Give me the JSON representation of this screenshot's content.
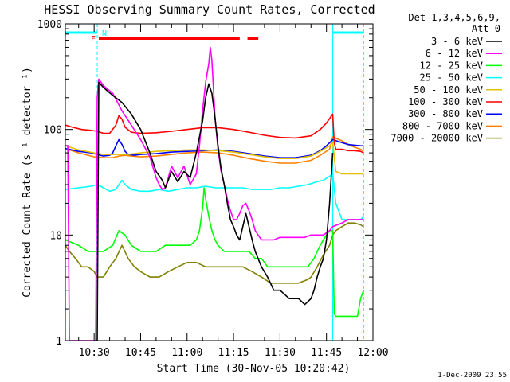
{
  "chart_data": {
    "type": "line",
    "title": "HESSI Observing Summary Count Rates, Corrected",
    "xlabel": "Start Time (30-Nov-05 10:20:42)",
    "ylabel": "Corrected Count Rate (s⁻¹ detector⁻¹)",
    "yscale": "log",
    "ylim": [
      1,
      1000
    ],
    "xlim_minutes": [
      20.7,
      120
    ],
    "x_ticks": [
      {
        "minute": 30,
        "label": "10:30"
      },
      {
        "minute": 45,
        "label": "10:45"
      },
      {
        "minute": 60,
        "label": "11:00"
      },
      {
        "minute": 75,
        "label": "11:15"
      },
      {
        "minute": 90,
        "label": "11:30"
      },
      {
        "minute": 105,
        "label": "11:45"
      },
      {
        "minute": 120,
        "label": "12:00"
      }
    ],
    "y_ticks": [
      {
        "value": 1,
        "label": "1"
      },
      {
        "value": 10,
        "label": "10"
      },
      {
        "value": 100,
        "label": "100"
      },
      {
        "value": 1000,
        "label": "1000"
      }
    ],
    "legend_header": [
      "Det 1,3,4,5,6,9,",
      "Att 0"
    ],
    "legend_position": "right",
    "timestamp": "1-Dec-2009 23:55",
    "annotations": {
      "night_marker": "N",
      "flare_marker": "F",
      "night_color": "#00ffff",
      "flare_color": "#ff0000",
      "night_intervals": [
        [
          20.7,
          31
        ],
        [
          107,
          117
        ]
      ],
      "night_boundaries": [
        31,
        107,
        117
      ],
      "flare_intervals": [
        [
          31.5,
          77
        ],
        [
          79.5,
          83
        ]
      ]
    },
    "series": [
      {
        "name": "3 - 6 keV",
        "color": "#000000",
        "x": [
          31,
          31.5,
          33,
          36,
          39,
          42,
          45,
          48,
          50,
          52,
          53,
          55,
          57,
          59,
          61,
          63,
          65,
          66,
          67,
          68,
          69,
          70,
          71,
          72,
          73,
          74,
          75,
          76,
          77,
          78,
          79,
          80,
          81,
          82,
          84,
          86,
          88,
          90,
          93,
          96,
          98,
          100,
          101,
          102,
          103,
          104,
          105,
          106,
          107
        ],
        "y": [
          1,
          280,
          250,
          210,
          180,
          140,
          100,
          60,
          40,
          33,
          28,
          40,
          32,
          40,
          35,
          60,
          120,
          200,
          270,
          220,
          130,
          70,
          42,
          30,
          20,
          14,
          12,
          10,
          9,
          12,
          16,
          12,
          9,
          7,
          5,
          4,
          3,
          3,
          2.5,
          2.5,
          2.2,
          2.5,
          3,
          4,
          5,
          6,
          9,
          20,
          60
        ]
      },
      {
        "name": "6 - 12 keV",
        "color": "#ff00ff",
        "x": [
          20.7,
          21.5,
          22,
          30.5,
          31,
          31.5,
          33,
          36,
          39,
          42,
          45,
          48,
          50,
          51,
          52,
          53,
          55,
          57,
          59,
          61,
          63,
          64,
          65,
          66,
          67,
          67.5,
          68,
          68.5,
          69,
          70,
          71,
          72,
          73,
          74,
          75,
          76,
          77,
          78,
          79,
          80,
          81,
          82,
          84,
          86,
          88,
          90,
          93,
          96,
          98,
          100,
          102,
          104,
          106,
          107,
          110,
          112,
          114,
          116,
          117
        ],
        "y": [
          70,
          70,
          1,
          1,
          200,
          300,
          260,
          220,
          150,
          110,
          80,
          55,
          35,
          30,
          27,
          28,
          45,
          35,
          45,
          30,
          38,
          70,
          150,
          280,
          420,
          600,
          450,
          250,
          130,
          65,
          40,
          30,
          22,
          17,
          14,
          14,
          16,
          19,
          20,
          17,
          14,
          11,
          9,
          9,
          9,
          9.5,
          9.5,
          9.5,
          9.5,
          10,
          10,
          10,
          11,
          12,
          13,
          14,
          14,
          14,
          14
        ]
      },
      {
        "name": "12 - 25 keV",
        "color": "#00ff00",
        "x": [
          20.7,
          25,
          28,
          31,
          33,
          36,
          38,
          40,
          42,
          45,
          48,
          50,
          53,
          55,
          58,
          61,
          63,
          64,
          65,
          65.5,
          66,
          67,
          68,
          69,
          70,
          72,
          75,
          78,
          80,
          82,
          84,
          86,
          88,
          90,
          93,
          96,
          99,
          100,
          101,
          102,
          103,
          104,
          105,
          106,
          107,
          107.5,
          108,
          110,
          112,
          113,
          114,
          115,
          116,
          117
        ],
        "y": [
          9,
          8,
          7,
          7,
          7,
          8,
          11,
          10,
          8,
          7,
          7,
          7,
          8,
          8,
          8,
          8,
          9,
          11,
          18,
          28,
          22,
          15,
          11,
          9,
          8,
          7,
          7,
          7,
          7,
          6,
          6,
          5,
          5,
          5,
          5,
          5,
          5,
          5.5,
          6,
          7,
          8,
          9,
          10,
          11,
          11,
          1.8,
          1.7,
          1.7,
          1.7,
          1.7,
          1.7,
          1.7,
          2.5,
          3
        ]
      },
      {
        "name": "25 - 50 keV",
        "color": "#00ffff",
        "x": [
          20.7,
          25,
          29,
          31,
          33,
          35,
          37,
          38,
          39,
          40,
          42,
          45,
          48,
          51,
          54,
          57,
          60,
          63,
          66,
          69,
          72,
          75,
          78,
          81,
          84,
          87,
          90,
          93,
          96,
          99,
          102,
          104,
          106,
          107,
          108,
          110,
          112,
          114,
          116,
          117
        ],
        "y": [
          27,
          28,
          29,
          30,
          28,
          26,
          27,
          30,
          33,
          30,
          27,
          26,
          26,
          27,
          26,
          27,
          28,
          28,
          29,
          28,
          28,
          28,
          28,
          27,
          27,
          27,
          28,
          28,
          29,
          30,
          32,
          33,
          36,
          38,
          20,
          14,
          14,
          14,
          14,
          15
        ]
      },
      {
        "name": "50 - 100 keV",
        "color": "#e0c000",
        "x": [
          20.7,
          25,
          30,
          33,
          37,
          41,
          45,
          50,
          55,
          60,
          65,
          70,
          75,
          80,
          85,
          90,
          95,
          100,
          103,
          106,
          107,
          108,
          110,
          112,
          114,
          116,
          117
        ],
        "y": [
          70,
          64,
          60,
          58,
          58,
          58,
          60,
          62,
          63,
          64,
          64,
          63,
          61,
          58,
          55,
          53,
          53,
          56,
          62,
          70,
          75,
          40,
          38,
          38,
          38,
          38,
          38
        ]
      },
      {
        "name": "100 - 300 keV",
        "color": "#ff0000",
        "x": [
          20.7,
          23,
          26,
          29,
          31,
          33,
          35,
          37,
          38,
          39,
          40,
          42,
          45,
          50,
          55,
          60,
          65,
          70,
          75,
          80,
          85,
          90,
          95,
          100,
          103,
          105,
          107,
          107.5,
          108,
          110,
          112,
          114,
          116,
          117
        ],
        "y": [
          110,
          105,
          100,
          98,
          96,
          92,
          92,
          110,
          135,
          125,
          105,
          94,
          92,
          93,
          96,
          100,
          104,
          104,
          100,
          94,
          88,
          84,
          83,
          87,
          100,
          115,
          140,
          75,
          65,
          65,
          63,
          63,
          62,
          60
        ]
      },
      {
        "name": "300 - 800 keV",
        "color": "#0000ff",
        "x": [
          20.7,
          25,
          29,
          31,
          33,
          35,
          36,
          37,
          38,
          39,
          40,
          41,
          43,
          45,
          50,
          55,
          60,
          65,
          70,
          75,
          80,
          85,
          90,
          95,
          100,
          103,
          105,
          107,
          110,
          112,
          114,
          116,
          117
        ],
        "y": [
          66,
          62,
          60,
          58,
          56,
          57,
          60,
          70,
          80,
          72,
          62,
          58,
          57,
          58,
          59,
          61,
          62,
          63,
          64,
          62,
          59,
          56,
          54,
          54,
          57,
          63,
          70,
          80,
          75,
          72,
          71,
          70,
          70
        ]
      },
      {
        "name": "800 - 7000 keV",
        "color": "#ff8000",
        "x": [
          20.7,
          25,
          30,
          33,
          36,
          38,
          40,
          42,
          45,
          50,
          55,
          60,
          65,
          70,
          75,
          80,
          85,
          90,
          95,
          100,
          103,
          106,
          107,
          110,
          112,
          114,
          116,
          117
        ],
        "y": [
          66,
          60,
          55,
          54,
          54,
          56,
          57,
          56,
          55,
          56,
          58,
          60,
          61,
          60,
          57,
          53,
          50,
          48,
          48,
          51,
          57,
          65,
          85,
          78,
          72,
          68,
          65,
          62
        ]
      },
      {
        "name": "7000 - 20000 keV",
        "color": "#808000",
        "x": [
          20.7,
          22,
          24,
          26,
          28,
          30,
          31,
          33,
          35,
          37,
          39,
          41,
          43,
          45,
          48,
          51,
          54,
          57,
          60,
          63,
          66,
          69,
          72,
          75,
          78,
          81,
          84,
          87,
          90,
          93,
          96,
          99,
          100,
          102,
          104,
          106,
          107,
          108,
          110,
          112,
          114,
          116,
          117
        ],
        "y": [
          8,
          7,
          6,
          5,
          5,
          4.5,
          4,
          4,
          5,
          6,
          8,
          6,
          5,
          4.5,
          4,
          4,
          4.5,
          5,
          5.5,
          5.5,
          5,
          5,
          5,
          5,
          5,
          4.5,
          4,
          3.5,
          3.5,
          3.5,
          3.5,
          3.8,
          4,
          5,
          6.5,
          8,
          10,
          11,
          12,
          13,
          13,
          12.5,
          12
        ]
      }
    ]
  }
}
